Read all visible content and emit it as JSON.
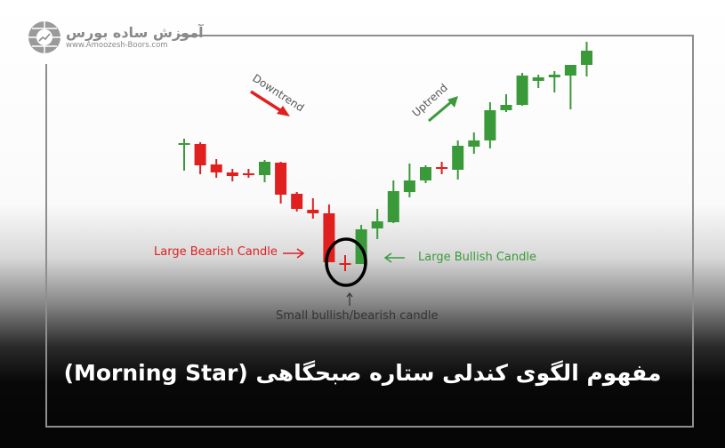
{
  "logo": {
    "name_fa": "آموزش ساده بورس",
    "url": "www.Amoozesh-Boors.com"
  },
  "labels": {
    "downtrend": "Downtrend",
    "uptrend": "Uptrend",
    "large_bearish": "Large Bearish Candle",
    "large_bullish": "Large Bullish Candle",
    "small_candle": "Small bullish/bearish candle"
  },
  "title": "مفهوم الگوی کندلی ستاره صبحگاهی (Morning Star)",
  "colors": {
    "bullish": "#3a9a3a",
    "bearish": "#e01f1f",
    "highlight_circle": "#000000",
    "title_text": "#ffffff"
  },
  "chart_data": {
    "type": "candlestick",
    "candles": [
      {
        "open": 138,
        "close": 138,
        "high": 144,
        "low": 108
      },
      {
        "open": 138,
        "close": 114,
        "high": 140,
        "low": 104
      },
      {
        "open": 115,
        "close": 106,
        "high": 121,
        "low": 100
      },
      {
        "open": 106,
        "close": 102,
        "high": 110,
        "low": 96
      },
      {
        "open": 104,
        "close": 104,
        "high": 110,
        "low": 100
      },
      {
        "open": 103,
        "close": 118,
        "high": 120,
        "low": 95
      },
      {
        "open": 117,
        "close": 81,
        "high": 118,
        "low": 71
      },
      {
        "open": 82,
        "close": 65,
        "high": 84,
        "low": 62
      },
      {
        "open": 64,
        "close": 60,
        "high": 77,
        "low": 54
      },
      {
        "open": 60,
        "close": 5,
        "high": 70,
        "low": 5
      },
      {
        "open": 3,
        "close": 3,
        "high": 13,
        "low": -5
      },
      {
        "open": 3,
        "close": 42,
        "high": 47,
        "low": 3
      },
      {
        "open": 43,
        "close": 51,
        "high": 65,
        "low": 31
      },
      {
        "open": 50,
        "close": 85,
        "high": 97,
        "low": 49
      },
      {
        "open": 84,
        "close": 97,
        "high": 116,
        "low": 78
      },
      {
        "open": 97,
        "close": 112,
        "high": 114,
        "low": 94
      },
      {
        "open": 111,
        "close": 111,
        "high": 118,
        "low": 104
      },
      {
        "open": 109,
        "close": 136,
        "high": 142,
        "low": 98
      },
      {
        "open": 135,
        "close": 142,
        "high": 151,
        "low": 127
      },
      {
        "open": 142,
        "close": 176,
        "high": 185,
        "low": 133
      },
      {
        "open": 176,
        "close": 182,
        "high": 194,
        "low": 174
      },
      {
        "open": 182,
        "close": 215,
        "high": 218,
        "low": 181
      },
      {
        "open": 209,
        "close": 213,
        "high": 216,
        "low": 201
      },
      {
        "open": 213,
        "close": 216,
        "high": 220,
        "low": 196
      },
      {
        "open": 215,
        "close": 227,
        "high": 227,
        "low": 177
      },
      {
        "open": 227,
        "close": 243,
        "high": 253,
        "low": 214
      }
    ]
  }
}
